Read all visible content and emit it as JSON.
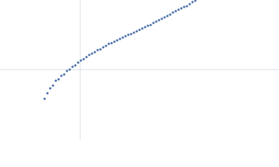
{
  "chart_data": {
    "type": "scatter",
    "x": [
      64,
      68,
      72,
      76,
      80,
      84,
      88,
      92,
      96,
      100,
      104,
      108,
      112,
      116,
      120,
      124,
      128,
      132,
      136,
      140,
      144,
      148,
      152,
      156,
      160,
      164,
      168,
      172,
      176,
      180,
      184,
      188,
      192,
      196,
      200,
      204,
      208,
      212,
      216,
      220,
      224,
      228,
      232,
      236,
      240,
      244,
      248,
      252,
      256,
      260,
      264,
      268,
      272,
      276,
      280
    ],
    "values": [
      58,
      66,
      73,
      77,
      84,
      86,
      91,
      93,
      98,
      100,
      104,
      106,
      110,
      113,
      115,
      118,
      121,
      123,
      125,
      128,
      129,
      132,
      134,
      137,
      138,
      140,
      142,
      144,
      146,
      148,
      150,
      151,
      153,
      155,
      157,
      159,
      161,
      163,
      164,
      167,
      169,
      171,
      173,
      175,
      177,
      179,
      182,
      184,
      186,
      188,
      190,
      191,
      194,
      197,
      199
    ],
    "color": "#4a6fa8",
    "xlim": [
      0,
      400
    ],
    "ylim": [
      0,
      200
    ],
    "reference_x": 115,
    "reference_y": 100,
    "reference_color": "#d5dbe3"
  }
}
